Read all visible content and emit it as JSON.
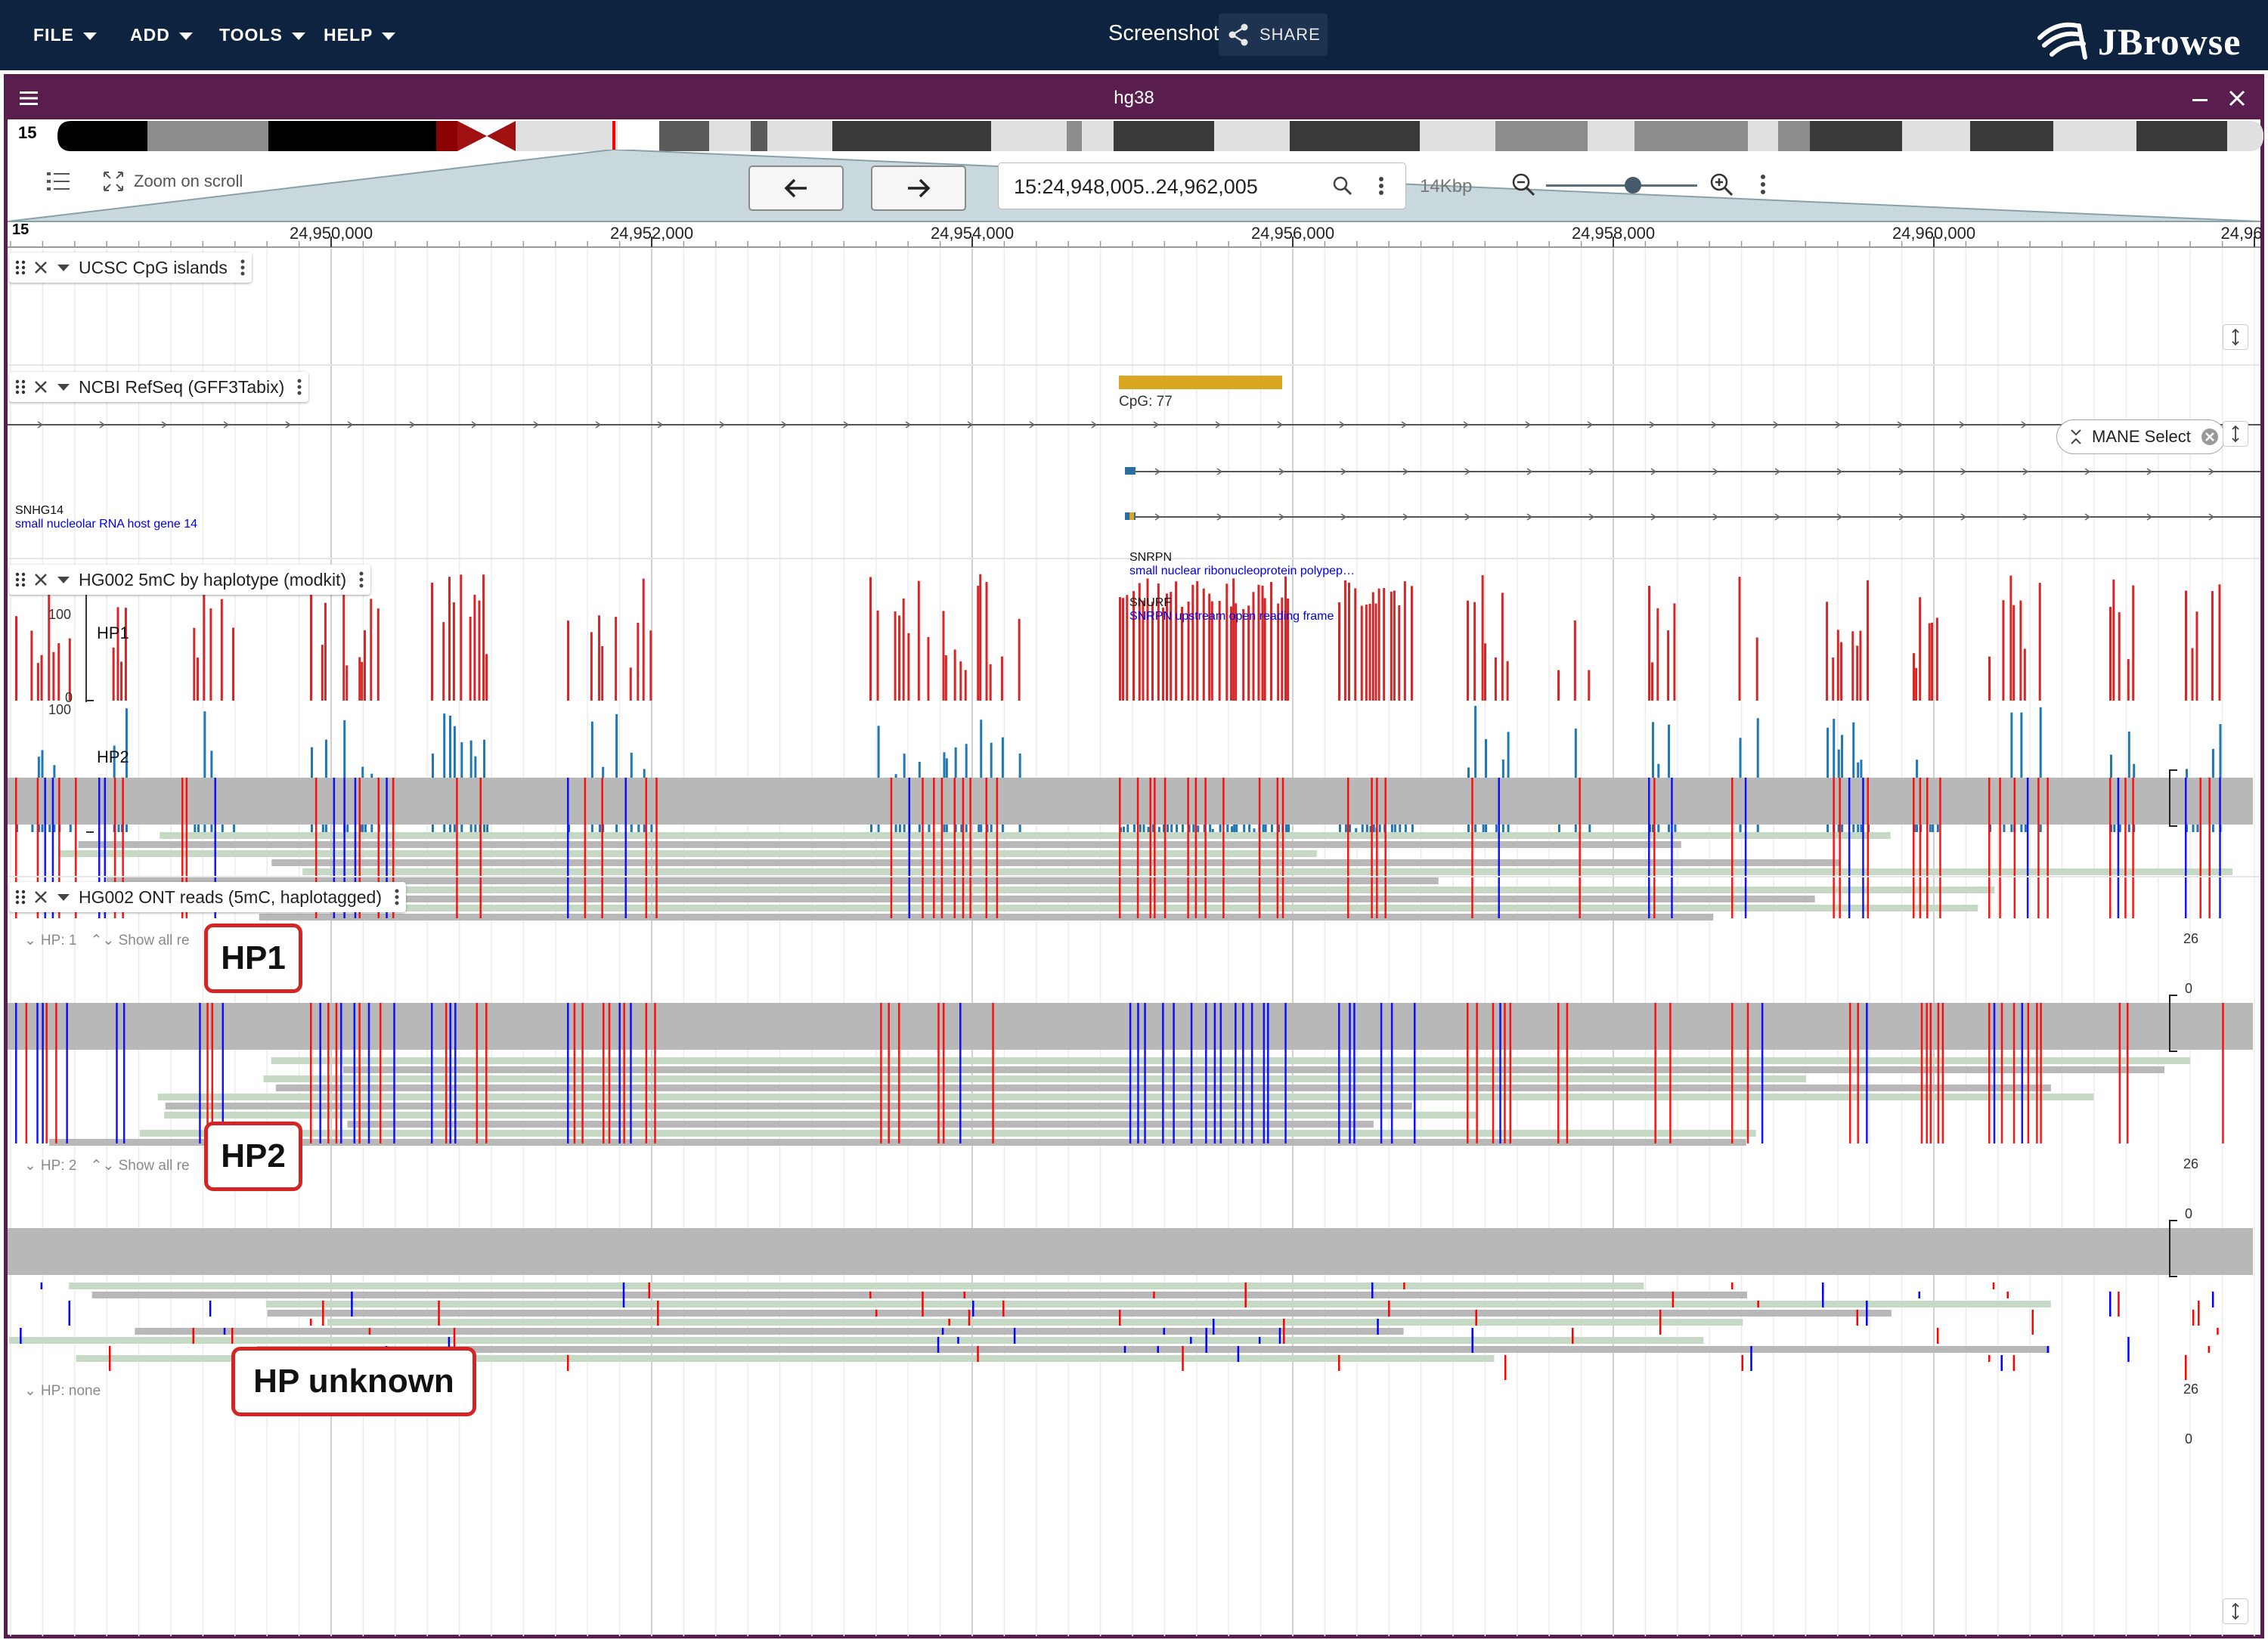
{
  "app": {
    "menus": [
      "FILE",
      "ADD",
      "TOOLS",
      "HELP"
    ],
    "session_name": "Screenshot",
    "share_label": "SHARE",
    "logo_text": "JBrowse",
    "colors": {
      "appbar": "#0d233f",
      "view_header": "#5a1e4e",
      "accent": "#5a1e4e"
    }
  },
  "view": {
    "assembly": "hg38",
    "chromosome": "15",
    "zoom_on_scroll_label": "Zoom on scroll",
    "locstring": "15:24,948,005..24,962,005",
    "bp_per_view": "14Kbp",
    "zoom_level": 0.52
  },
  "ruler": {
    "chrom": "15",
    "ticks": [
      "24,950,000",
      "24,952,000",
      "24,954,000",
      "24,956,000",
      "24,958,000",
      "24,960,000",
      "24,96"
    ]
  },
  "tracks": {
    "cpg": {
      "name": "UCSC CpG islands",
      "feature_label": "CpG: 77",
      "feature_color": "#daa520"
    },
    "refseq": {
      "name": "NCBI RefSeq (GFF3Tabix)",
      "genes": [
        {
          "name": "SNHG14",
          "desc": "small nucleolar RNA host gene 14"
        },
        {
          "name": "SNRPN",
          "desc": "small nuclear ribonucleoprotein polypep…"
        },
        {
          "name": "SNURF",
          "desc": "SNRPN upstream open reading frame"
        }
      ],
      "filter_chip": "MANE Select"
    },
    "modkit": {
      "name": "HG002 5mC by haplotype (modkit)",
      "rows": [
        {
          "label": "HP1",
          "max": "100",
          "min": "0",
          "color": "#d62728"
        },
        {
          "label": "HP2",
          "max": "100",
          "min": "0",
          "color": "#1f77b4"
        }
      ]
    },
    "reads": {
      "name": "HG002 ONT reads (5mC, haplotagged)",
      "groups": [
        {
          "label": "HP: 1",
          "show_all": "Show all re",
          "callout": "HP1",
          "cov_max": "26",
          "cov_min": "0"
        },
        {
          "label": "HP: 2",
          "show_all": "Show all re",
          "callout": "HP2",
          "cov_max": "26",
          "cov_min": "0"
        },
        {
          "label": "HP: none",
          "callout": "HP unknown",
          "cov_max": "26",
          "cov_min": "0"
        }
      ],
      "colors": {
        "methylated": "#ff0000",
        "unmethylated": "#0000ff",
        "read_fwd": "#c5d9c5",
        "read_rev": "#b8b8b8",
        "coverage": "#b8b8b8"
      }
    }
  },
  "icons": [
    "menu-icon",
    "share-icon",
    "close-icon",
    "minimize-icon",
    "track-selector-icon",
    "zoom-scroll-icon",
    "arrow-left-icon",
    "arrow-right-icon",
    "search-icon",
    "more-vert-icon",
    "zoom-out-icon",
    "zoom-in-icon",
    "drag-handle-icon",
    "resize-icon"
  ]
}
